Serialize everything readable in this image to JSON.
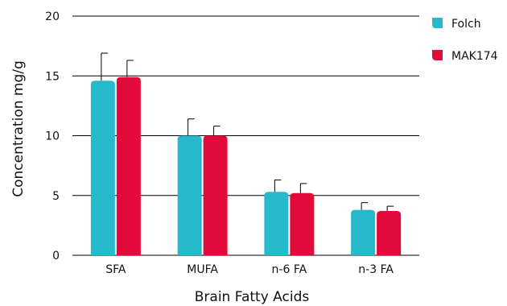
{
  "chart_data": {
    "type": "bar",
    "xlabel": "Brain Fatty Acids",
    "ylabel": "Concentration mg/g",
    "ylim": [
      0,
      20
    ],
    "yticks": [
      0,
      5,
      10,
      15,
      20
    ],
    "grid": true,
    "legend_position": "right",
    "categories": [
      "SFA",
      "MUFA",
      "n-6 FA",
      "n-3 FA"
    ],
    "series": [
      {
        "name": "Folch",
        "color": "#26b9cc",
        "values": [
          14.6,
          10.0,
          5.3,
          3.8
        ],
        "errors": [
          2.3,
          1.4,
          1.0,
          0.6
        ]
      },
      {
        "name": "MAK174",
        "color": "#e20a3a",
        "values": [
          14.9,
          10.0,
          5.2,
          3.7
        ],
        "errors": [
          1.4,
          0.8,
          0.8,
          0.4
        ]
      }
    ]
  }
}
